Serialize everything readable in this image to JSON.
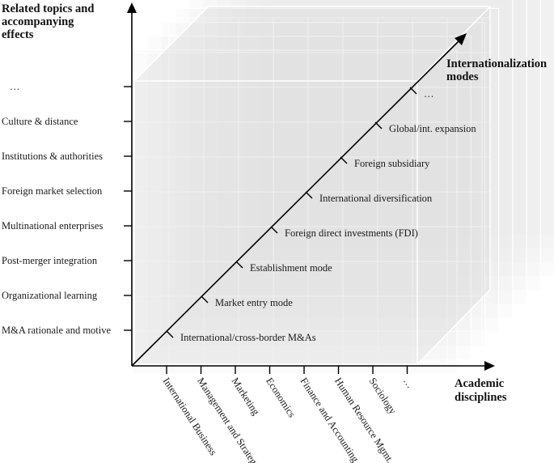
{
  "y_axis": {
    "title_lines": [
      "Related topics and",
      "accompanying",
      "effects"
    ],
    "labels": [
      "M&A rationale and motive",
      "Organizational learning",
      "Post-merger integration",
      "Multinational enterprises",
      "Foreign market selection",
      "Institutions & authorities",
      "Culture & distance",
      "…"
    ]
  },
  "diagonal_axis": {
    "title_lines": [
      "Internationalization",
      "modes"
    ],
    "labels": [
      "International/cross-border M&As",
      "Market entry mode",
      "Establishment mode",
      "Foreign direct investments (FDI)",
      "International diversification",
      "Foreign subsidiary",
      "Global/int. expansion",
      "…"
    ]
  },
  "x_axis": {
    "title_lines": [
      "Academic",
      "disciplines"
    ],
    "labels": [
      "International Business",
      "Management and Strategy",
      "Marketing",
      "Economics",
      "Finance and Accounting",
      "Human Resource Mgmt.",
      "Sociology",
      "…"
    ]
  },
  "colors": {
    "axis": "#000000",
    "cube_face": "#e4e4e4",
    "cube_edge": "#ffffff"
  }
}
